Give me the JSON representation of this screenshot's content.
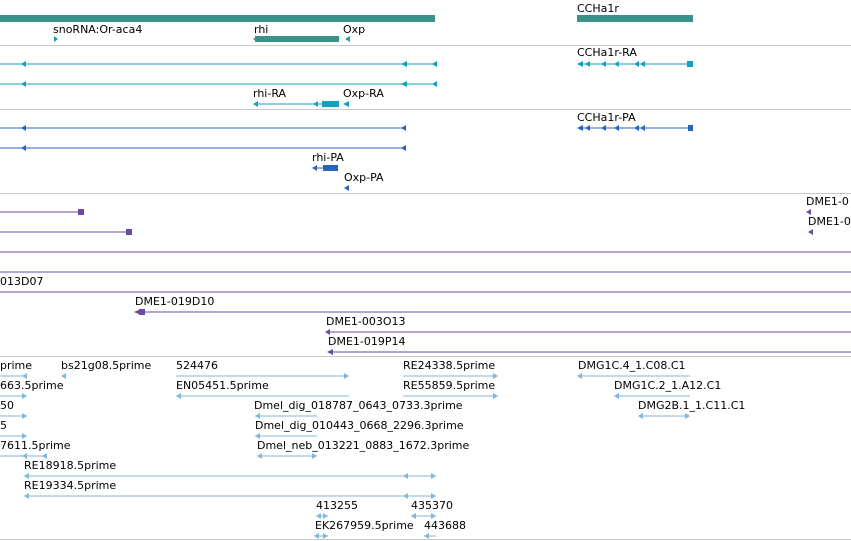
{
  "colors": {
    "gene": "#3a9289",
    "mrna": "#12a2b8",
    "protein": "#2a63c0",
    "bac": "#6a4aa5",
    "est": "#7fb8de"
  },
  "gene_track": {
    "labels": [
      "snoRNA:Or-aca4",
      "rhi",
      "Oxp",
      "CCHa1r"
    ]
  },
  "mrna_track": {
    "labels": [
      "CCHa1r-RA",
      "rhi-RA",
      "Oxp-RA"
    ]
  },
  "protein_track": {
    "labels": [
      "CCHa1r-PA",
      "rhi-PA",
      "Oxp-PA"
    ]
  },
  "bac_track": {
    "labels": [
      "DME1-0",
      "DME1-0",
      "013D07",
      "DME1-019D10",
      "DME1-003O13",
      "DME1-019P14"
    ]
  },
  "est_track": {
    "labels": [
      "prime",
      "bs21g08.5prime",
      "524476",
      "RE24338.5prime",
      "DMG1C.4_1.C08.C1",
      "663.5prime",
      "EN05451.5prime",
      "RE55859.5prime",
      "DMG1C.2_1.A12.C1",
      "50",
      "Dmel_dig_018787_0643_0733.3prime",
      "DMG2B.1_1.C11.C1",
      "5",
      "Dmel_dig_010443_0668_2296.3prime",
      "7611.5prime",
      "Dmel_neb_013221_0883_1672.3prime",
      "RE18918.5prime",
      "RE19334.5prime",
      "413255",
      "435370",
      "EK267959.5prime",
      "443688"
    ]
  }
}
